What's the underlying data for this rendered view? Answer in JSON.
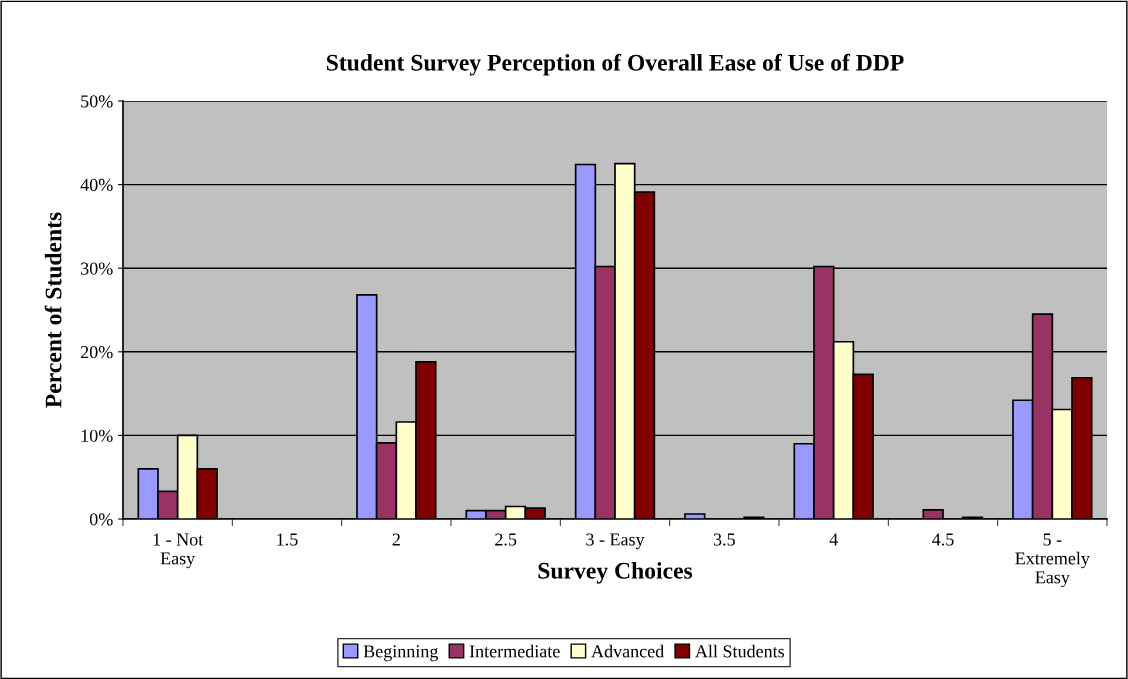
{
  "chart_data": {
    "type": "bar",
    "title": "Student Survey Perception of Overall Ease of Use of DDP",
    "xlabel": "Survey Choices",
    "ylabel": "Percent of Students",
    "categories": [
      "1 - Not\nEasy",
      "1.5",
      "2",
      "2.5",
      "3 - Easy",
      "3.5",
      "4",
      "4.5",
      "5 -\nExtremely\nEasy"
    ],
    "series": [
      {
        "name": "Beginning",
        "color": "#9999ff",
        "values": [
          6.0,
          null,
          26.8,
          1.0,
          42.4,
          0.6,
          9.0,
          null,
          14.2
        ]
      },
      {
        "name": "Intermediate",
        "color": "#993366",
        "values": [
          3.3,
          null,
          9.1,
          1.0,
          30.2,
          null,
          30.2,
          1.1,
          24.5
        ]
      },
      {
        "name": "Advanced",
        "color": "#ffffcc",
        "values": [
          10.0,
          null,
          11.6,
          1.5,
          42.5,
          null,
          21.2,
          null,
          13.1
        ]
      },
      {
        "name": "All Students",
        "color": "#800000",
        "values": [
          6.0,
          null,
          18.8,
          1.3,
          39.1,
          0.2,
          17.3,
          0.2,
          16.9
        ]
      }
    ],
    "ylim": [
      0,
      50
    ],
    "yticks": [
      {
        "value": 0,
        "label": "0%"
      },
      {
        "value": 10,
        "label": "10%"
      },
      {
        "value": 20,
        "label": "20%"
      },
      {
        "value": 30,
        "label": "30%"
      },
      {
        "value": 40,
        "label": "40%"
      },
      {
        "value": 50,
        "label": "50%"
      }
    ],
    "grid": "y",
    "legend": "bottom"
  }
}
